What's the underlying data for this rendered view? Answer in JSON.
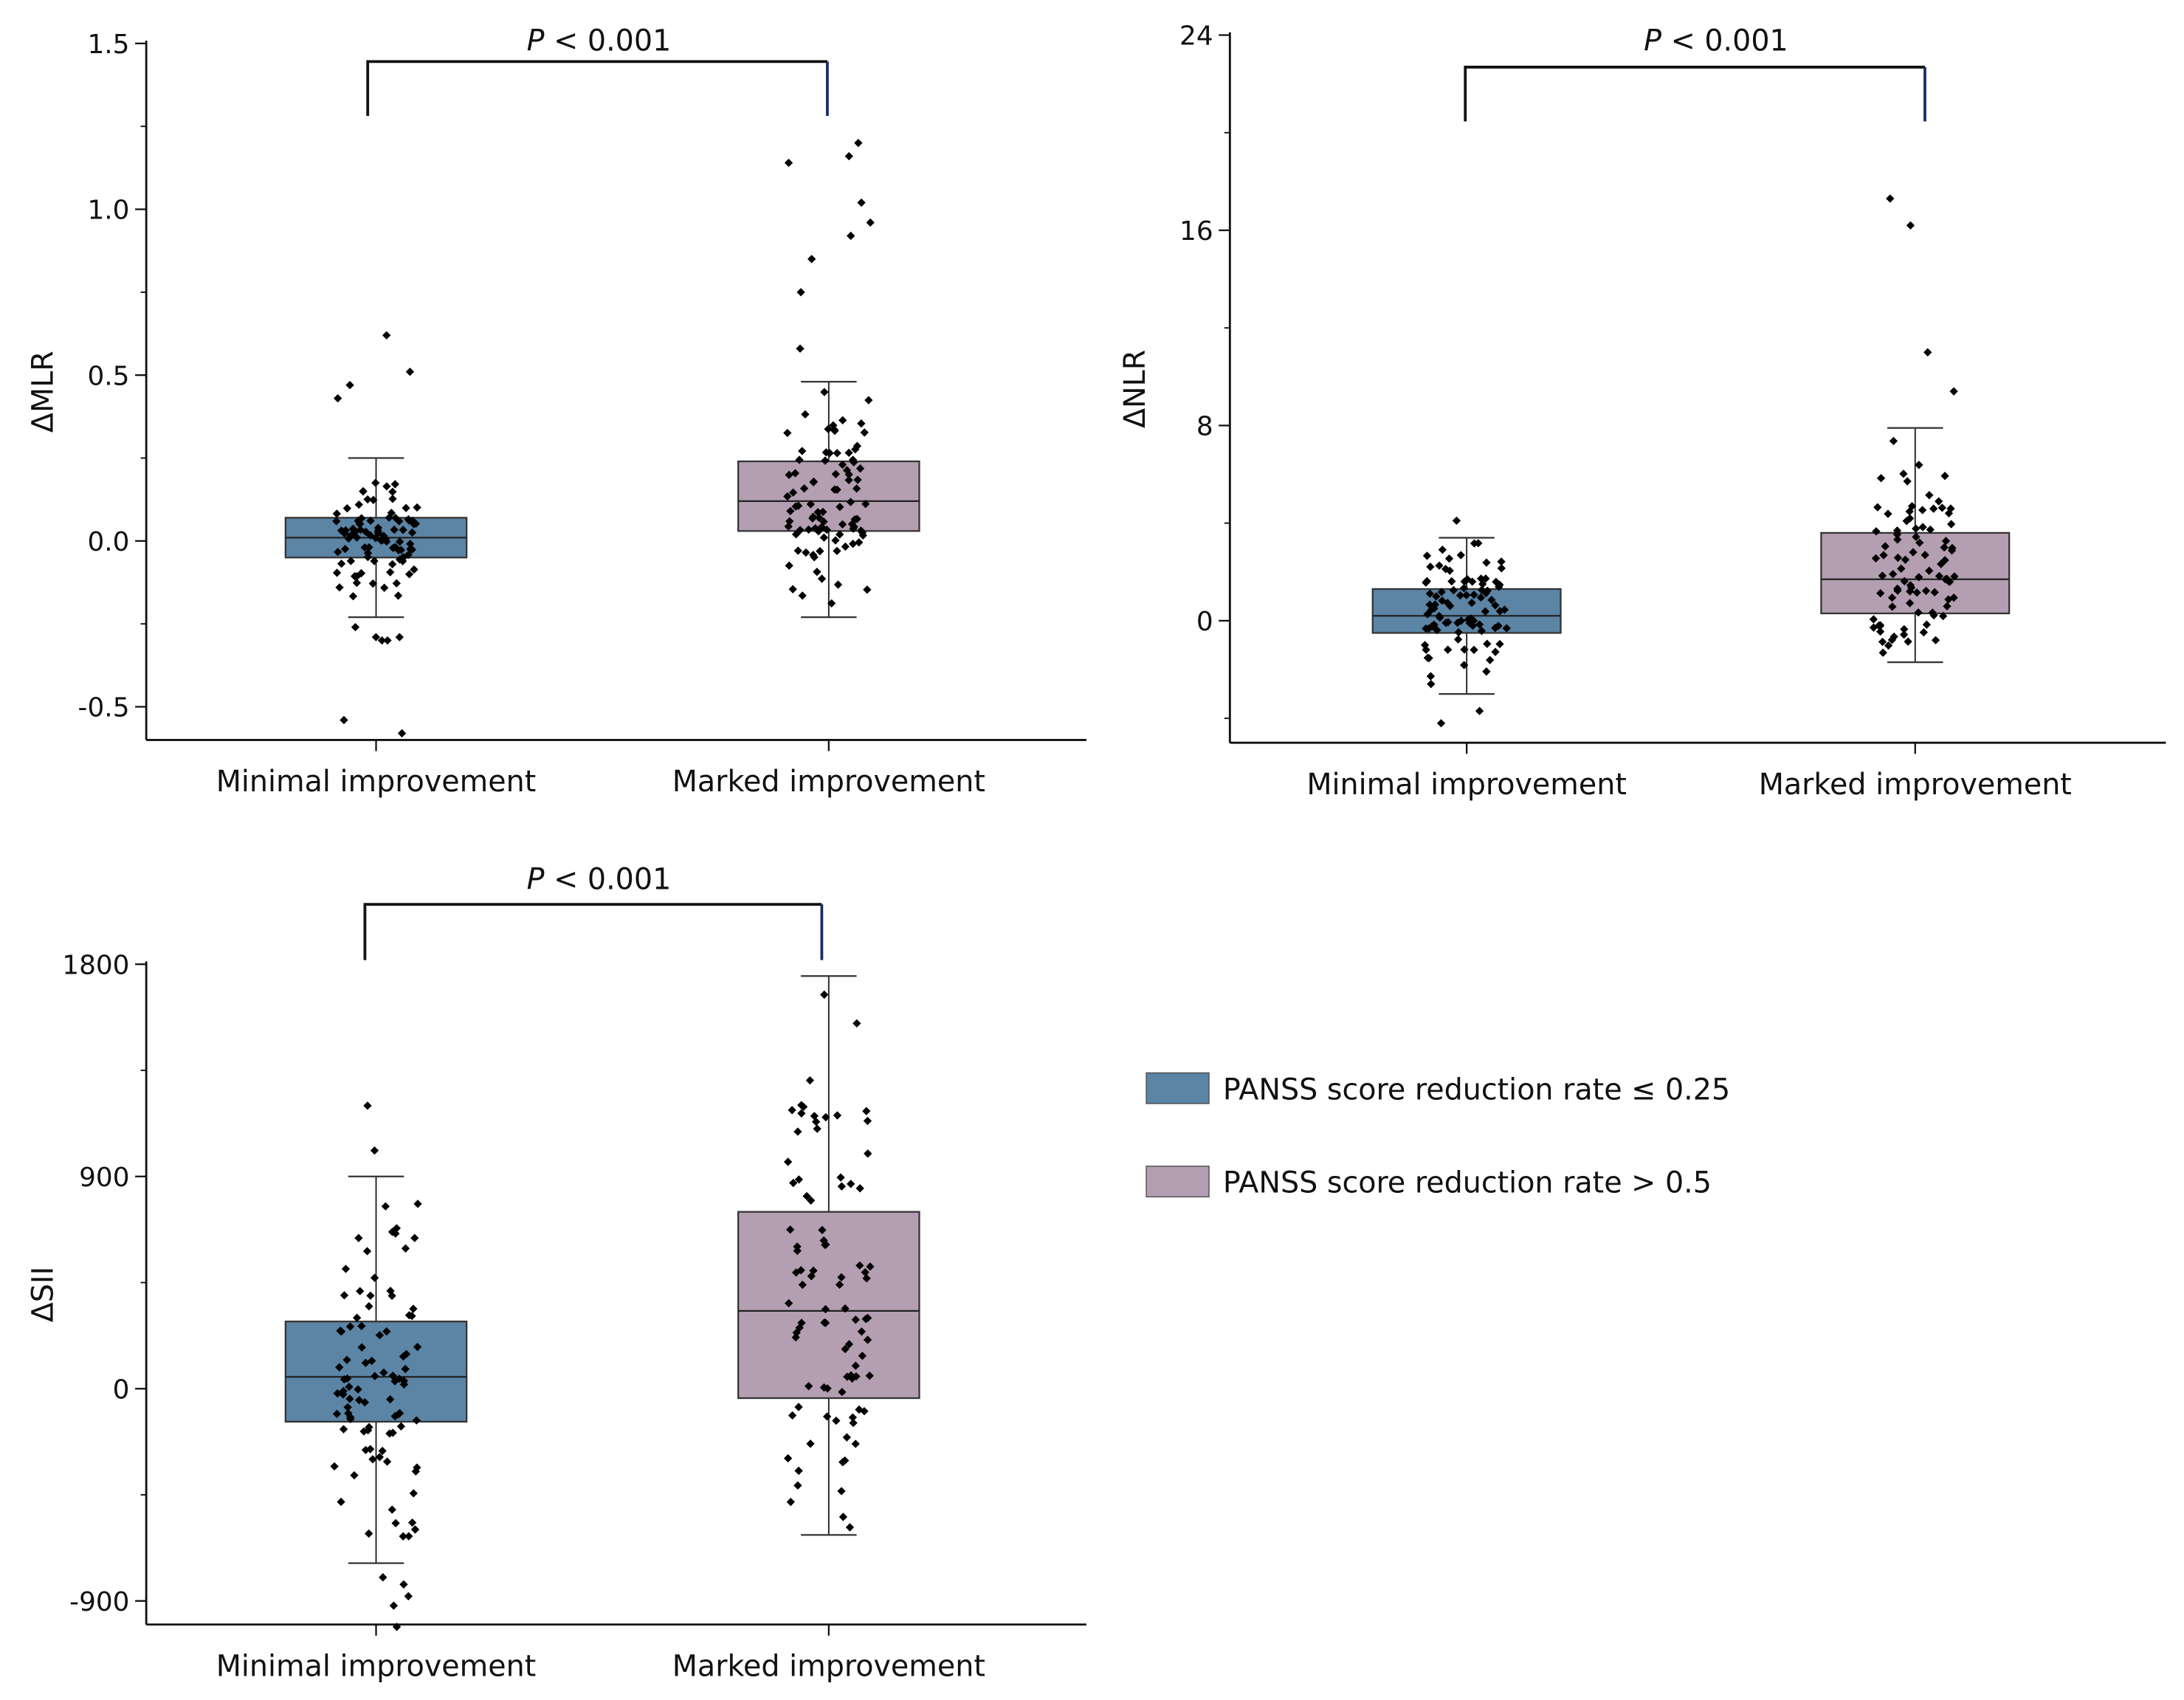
{
  "colors": {
    "minimal": "#5b84a5",
    "marked": "#b39fb1",
    "bracket_right": "#1a2a6c"
  },
  "legend": {
    "placement": "right",
    "items": [
      {
        "label": "PANSS score reduction rate ≤ 0.25",
        "color": "#5b84a5"
      },
      {
        "label": "PANSS score reduction rate > 0.5",
        "color": "#b39fb1"
      }
    ]
  },
  "chart_data": [
    {
      "type": "box",
      "ylabel": "ΔMLR",
      "categories": [
        "Minimal improvement",
        "Marked improvement"
      ],
      "ylim": [
        -0.6,
        1.5
      ],
      "yticks": [
        "-0.5",
        "0.0",
        "0.5",
        "1.0",
        "1.5"
      ],
      "ytick_values": [
        -0.5,
        0,
        0.5,
        1.0,
        1.5
      ],
      "minor_tick_step": 0.25,
      "annotation": {
        "p_symbol": "P",
        "p_rest": " < 0.001"
      },
      "boxes": [
        {
          "q1": -0.05,
          "median": 0.01,
          "q3": 0.07,
          "whisker_low": -0.23,
          "whisker_high": 0.25,
          "outliers": [
            0.62,
            0.51,
            0.47,
            0.43,
            -0.26,
            -0.29,
            -0.29,
            -0.3,
            -0.3,
            -0.54,
            -0.58
          ]
        },
        {
          "q1": 0.03,
          "median": 0.12,
          "q3": 0.24,
          "whisker_low": -0.23,
          "whisker_high": 0.48,
          "outliers": [
            1.2,
            1.16,
            1.14,
            1.02,
            0.96,
            0.92,
            0.85,
            0.75,
            0.58
          ]
        }
      ]
    },
    {
      "type": "box",
      "ylabel": "ΔNLR",
      "categories": [
        "Minimal improvement",
        "Marked improvement"
      ],
      "ylim": [
        -5,
        24
      ],
      "yticks": [
        "0",
        "8",
        "16",
        "24"
      ],
      "ytick_values": [
        0,
        8,
        16,
        24
      ],
      "minor_tick_step": 4,
      "annotation": {
        "p_symbol": "P",
        "p_rest": " < 0.001"
      },
      "boxes": [
        {
          "q1": -0.5,
          "median": 0.2,
          "q3": 1.3,
          "whisker_low": -3.0,
          "whisker_high": 3.4,
          "outliers": [
            4.1,
            -3.7,
            -4.2
          ]
        },
        {
          "q1": 0.3,
          "median": 1.7,
          "q3": 3.6,
          "whisker_low": -1.7,
          "whisker_high": 7.9,
          "outliers": [
            17.3,
            16.2,
            11.0,
            9.4
          ]
        }
      ]
    },
    {
      "type": "box",
      "ylabel": "ΔSII",
      "categories": [
        "Minimal improvement",
        "Marked improvement"
      ],
      "ylim": [
        -1000,
        1800
      ],
      "yticks": [
        "-900",
        "0",
        "900",
        "1800"
      ],
      "ytick_values": [
        -900,
        0,
        900,
        1800
      ],
      "minor_tick_step": 450,
      "annotation": {
        "p_symbol": "P",
        "p_rest": " < 0.001"
      },
      "boxes": [
        {
          "q1": -140,
          "median": 50,
          "q3": 285,
          "whisker_low": -740,
          "whisker_high": 900,
          "outliers": [
            1200,
            1010,
            -800,
            -830,
            -880,
            -920,
            -1010
          ]
        },
        {
          "q1": -40,
          "median": 330,
          "q3": 750,
          "whisker_low": -620,
          "whisker_high": 1750,
          "outliers": []
        }
      ]
    }
  ]
}
